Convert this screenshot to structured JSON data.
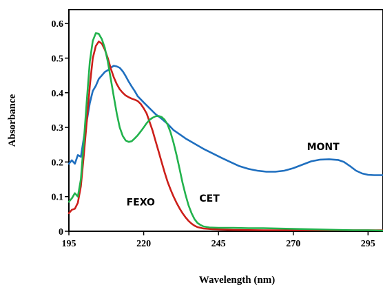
{
  "chart_data": {
    "type": "line",
    "title": "",
    "xlabel": "Wavelength (nm)",
    "ylabel": "Absorbance",
    "xlim": [
      195,
      300
    ],
    "ylim": [
      0,
      0.64
    ],
    "xticks": [
      195,
      220,
      245,
      270,
      295
    ],
    "yticks": [
      0,
      0.1,
      0.2,
      0.3,
      0.4,
      0.5,
      0.6
    ],
    "ytick_labels": [
      "0",
      "0.1",
      "0.2",
      "0.3",
      "0.4",
      "0.5",
      "0.6"
    ],
    "grid": false,
    "legend": "none (series labelled directly on the chart)",
    "series": [
      {
        "name": "MONT",
        "color": "#1f6fbf",
        "label_at": [
          280,
          0.235
        ],
        "points": [
          [
            195,
            0.195
          ],
          [
            196,
            0.205
          ],
          [
            197,
            0.195
          ],
          [
            198,
            0.22
          ],
          [
            199,
            0.215
          ],
          [
            200,
            0.27
          ],
          [
            201,
            0.32
          ],
          [
            202,
            0.37
          ],
          [
            203,
            0.405
          ],
          [
            204,
            0.42
          ],
          [
            205,
            0.44
          ],
          [
            206,
            0.45
          ],
          [
            207,
            0.46
          ],
          [
            208,
            0.465
          ],
          [
            209,
            0.472
          ],
          [
            210,
            0.478
          ],
          [
            211,
            0.476
          ],
          [
            212,
            0.472
          ],
          [
            213,
            0.462
          ],
          [
            214,
            0.448
          ],
          [
            215,
            0.432
          ],
          [
            216,
            0.418
          ],
          [
            217,
            0.405
          ],
          [
            218,
            0.39
          ],
          [
            220,
            0.372
          ],
          [
            222,
            0.355
          ],
          [
            224,
            0.338
          ],
          [
            226,
            0.325
          ],
          [
            228,
            0.31
          ],
          [
            230,
            0.292
          ],
          [
            232,
            0.28
          ],
          [
            234,
            0.268
          ],
          [
            236,
            0.258
          ],
          [
            238,
            0.248
          ],
          [
            240,
            0.238
          ],
          [
            243,
            0.225
          ],
          [
            246,
            0.212
          ],
          [
            249,
            0.2
          ],
          [
            252,
            0.188
          ],
          [
            255,
            0.18
          ],
          [
            258,
            0.175
          ],
          [
            261,
            0.172
          ],
          [
            264,
            0.172
          ],
          [
            267,
            0.175
          ],
          [
            270,
            0.182
          ],
          [
            273,
            0.192
          ],
          [
            276,
            0.202
          ],
          [
            279,
            0.207
          ],
          [
            282,
            0.208
          ],
          [
            285,
            0.206
          ],
          [
            287,
            0.2
          ],
          [
            289,
            0.188
          ],
          [
            291,
            0.175
          ],
          [
            293,
            0.167
          ],
          [
            295,
            0.163
          ],
          [
            297,
            0.162
          ],
          [
            300,
            0.162
          ]
        ]
      },
      {
        "name": "FEXO",
        "color": "#cc1f1a",
        "label_at": [
          219,
          0.075
        ],
        "points": [
          [
            195,
            0.052
          ],
          [
            196,
            0.062
          ],
          [
            197,
            0.065
          ],
          [
            198,
            0.082
          ],
          [
            199,
            0.13
          ],
          [
            200,
            0.22
          ],
          [
            201,
            0.32
          ],
          [
            202,
            0.42
          ],
          [
            203,
            0.5
          ],
          [
            204,
            0.535
          ],
          [
            205,
            0.548
          ],
          [
            206,
            0.542
          ],
          [
            207,
            0.525
          ],
          [
            208,
            0.5
          ],
          [
            209,
            0.47
          ],
          [
            210,
            0.445
          ],
          [
            211,
            0.425
          ],
          [
            212,
            0.41
          ],
          [
            213,
            0.4
          ],
          [
            214,
            0.392
          ],
          [
            215,
            0.387
          ],
          [
            216,
            0.383
          ],
          [
            217,
            0.38
          ],
          [
            218,
            0.376
          ],
          [
            219,
            0.368
          ],
          [
            220,
            0.355
          ],
          [
            221,
            0.34
          ],
          [
            222,
            0.315
          ],
          [
            223,
            0.29
          ],
          [
            224,
            0.26
          ],
          [
            225,
            0.23
          ],
          [
            226,
            0.2
          ],
          [
            227,
            0.17
          ],
          [
            228,
            0.143
          ],
          [
            229,
            0.12
          ],
          [
            230,
            0.1
          ],
          [
            231,
            0.082
          ],
          [
            232,
            0.066
          ],
          [
            233,
            0.052
          ],
          [
            234,
            0.04
          ],
          [
            235,
            0.03
          ],
          [
            236,
            0.022
          ],
          [
            237,
            0.016
          ],
          [
            238,
            0.012
          ],
          [
            240,
            0.008
          ],
          [
            243,
            0.006
          ],
          [
            246,
            0.005
          ],
          [
            250,
            0.004
          ],
          [
            260,
            0.003
          ],
          [
            270,
            0.003
          ],
          [
            280,
            0.003
          ],
          [
            290,
            0.003
          ],
          [
            300,
            0.003
          ]
        ]
      },
      {
        "name": "CET",
        "color": "#22b24c",
        "label_at": [
          242,
          0.085
        ],
        "points": [
          [
            195,
            0.085
          ],
          [
            196,
            0.095
          ],
          [
            197,
            0.11
          ],
          [
            198,
            0.1
          ],
          [
            199,
            0.15
          ],
          [
            200,
            0.26
          ],
          [
            201,
            0.38
          ],
          [
            202,
            0.49
          ],
          [
            203,
            0.55
          ],
          [
            204,
            0.572
          ],
          [
            205,
            0.57
          ],
          [
            206,
            0.555
          ],
          [
            207,
            0.53
          ],
          [
            208,
            0.49
          ],
          [
            209,
            0.44
          ],
          [
            210,
            0.39
          ],
          [
            211,
            0.34
          ],
          [
            212,
            0.3
          ],
          [
            213,
            0.275
          ],
          [
            214,
            0.262
          ],
          [
            215,
            0.258
          ],
          [
            216,
            0.26
          ],
          [
            217,
            0.268
          ],
          [
            218,
            0.277
          ],
          [
            219,
            0.288
          ],
          [
            220,
            0.3
          ],
          [
            221,
            0.312
          ],
          [
            222,
            0.322
          ],
          [
            223,
            0.328
          ],
          [
            224,
            0.332
          ],
          [
            225,
            0.333
          ],
          [
            226,
            0.33
          ],
          [
            227,
            0.322
          ],
          [
            228,
            0.308
          ],
          [
            229,
            0.285
          ],
          [
            230,
            0.255
          ],
          [
            231,
            0.22
          ],
          [
            232,
            0.18
          ],
          [
            233,
            0.14
          ],
          [
            234,
            0.105
          ],
          [
            235,
            0.075
          ],
          [
            236,
            0.052
          ],
          [
            237,
            0.035
          ],
          [
            238,
            0.024
          ],
          [
            239,
            0.018
          ],
          [
            240,
            0.014
          ],
          [
            242,
            0.011
          ],
          [
            245,
            0.01
          ],
          [
            250,
            0.01
          ],
          [
            255,
            0.009
          ],
          [
            260,
            0.009
          ],
          [
            265,
            0.008
          ],
          [
            270,
            0.007
          ],
          [
            275,
            0.006
          ],
          [
            280,
            0.005
          ],
          [
            285,
            0.004
          ],
          [
            290,
            0.003
          ],
          [
            295,
            0.003
          ],
          [
            300,
            0.002
          ]
        ]
      }
    ]
  }
}
